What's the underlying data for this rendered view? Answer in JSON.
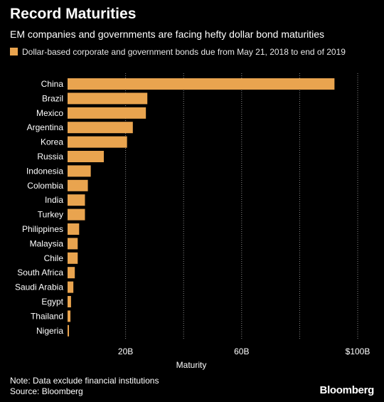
{
  "chart_data": {
    "type": "bar",
    "orientation": "horizontal",
    "title": "Record Maturities",
    "subtitle": "EM companies and governments are facing hefty dollar bond maturities",
    "categories": [
      "China",
      "Brazil",
      "Mexico",
      "Argentina",
      "Korea",
      "Russia",
      "Indonesia",
      "Colombia",
      "India",
      "Turkey",
      "Philippines",
      "Malaysia",
      "Chile",
      "South Africa",
      "Saudi Arabia",
      "Egypt",
      "Thailand",
      "Nigeria"
    ],
    "series": [
      {
        "name": "Dollar-based corporate and government bonds due from May 21, 2018 to end of 2019",
        "color": "#e9a44f",
        "values": [
          92,
          27.5,
          27,
          22.5,
          20.5,
          12.5,
          8,
          7,
          6,
          6,
          4,
          3.5,
          3.5,
          2.5,
          2,
          1.2,
          1,
          0.5
        ]
      }
    ],
    "xlabel": "Maturity",
    "xlim": [
      0,
      100
    ],
    "xticks": [
      {
        "value": 20,
        "label": "20B"
      },
      {
        "value": 60,
        "label": "60B"
      },
      {
        "value": 100,
        "label": "$100B"
      }
    ],
    "gridlines": [
      20,
      40,
      60,
      80,
      100
    ],
    "grid": true,
    "legend_position": "top-left"
  },
  "footer": {
    "note": "Note: Data exclude financial institutions",
    "source": "Source: Bloomberg",
    "brand": "Bloomberg"
  },
  "colors": {
    "background": "#000000",
    "bar": "#e9a44f",
    "grid": "#8a8a8a"
  }
}
